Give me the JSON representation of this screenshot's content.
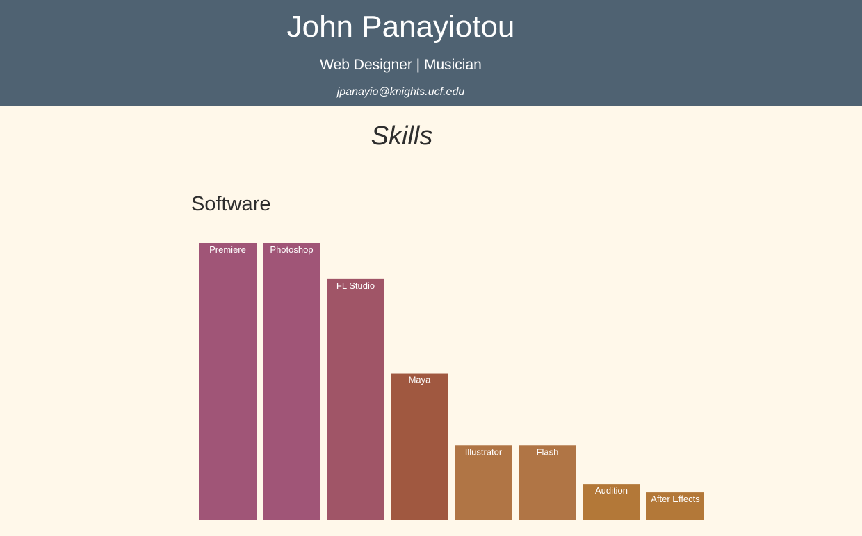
{
  "header": {
    "name": "John Panayiotou",
    "tagline": "Web Designer | Musician",
    "email": "jpanayio@knights.ucf.edu"
  },
  "skills": {
    "title": "Skills",
    "section_title": "Software"
  },
  "chart_data": {
    "type": "bar",
    "categories": [
      "Premiere",
      "Photoshop",
      "FL Studio",
      "Maya",
      "Illustrator",
      "Flash",
      "Audition",
      "After Effects"
    ],
    "values": [
      100,
      100,
      87,
      53,
      27,
      27,
      13,
      10
    ],
    "ylim": [
      0,
      100
    ],
    "colors": [
      "#a05577",
      "#a05577",
      "#a05567",
      "#a05840",
      "#b07545",
      "#b07545",
      "#b37838",
      "#b37838"
    ],
    "title": "",
    "xlabel": "",
    "ylabel": "",
    "grid": false,
    "legend": "none"
  }
}
